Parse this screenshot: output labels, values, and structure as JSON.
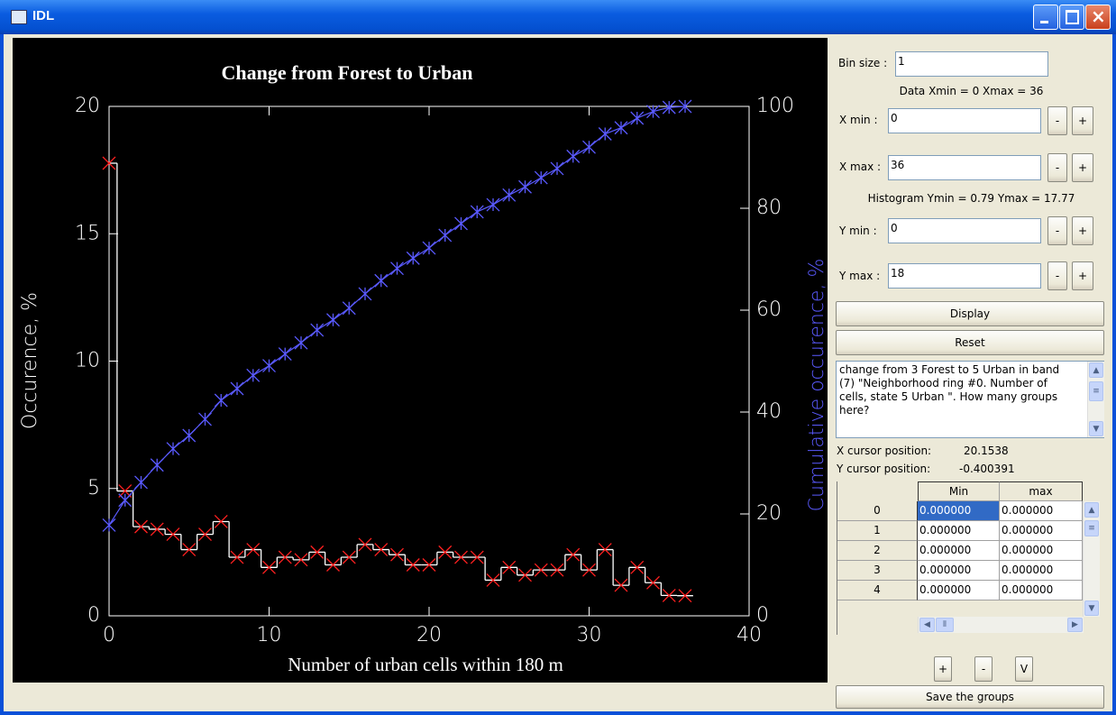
{
  "window": {
    "title": "IDL"
  },
  "chart_data": {
    "type": "line",
    "title": "Change from Forest to Urban",
    "x_label": "Number of urban cells within 180 m",
    "y_label": "Occurence, %",
    "y2_label": "Cumulative occurence, %",
    "x": [
      0,
      1,
      2,
      3,
      4,
      5,
      6,
      7,
      8,
      9,
      10,
      11,
      12,
      13,
      14,
      15,
      16,
      17,
      18,
      19,
      20,
      21,
      22,
      23,
      24,
      25,
      26,
      27,
      28,
      29,
      30,
      31,
      32,
      33,
      34,
      35,
      36
    ],
    "series": [
      {
        "color": "#ffffff",
        "marker": "x",
        "marker_color": "#ff2020",
        "step": true,
        "values": [
          17.77,
          4.9,
          3.5,
          3.4,
          3.2,
          2.6,
          3.2,
          3.7,
          2.3,
          2.6,
          1.9,
          2.3,
          2.2,
          2.5,
          2.0,
          2.3,
          2.8,
          2.6,
          2.4,
          2.0,
          2.0,
          2.5,
          2.3,
          2.3,
          1.4,
          1.9,
          1.6,
          1.8,
          1.8,
          2.4,
          1.8,
          2.6,
          1.2,
          1.9,
          1.3,
          0.8,
          0.79
        ]
      },
      {
        "color": "#5a5aff",
        "marker": "asterisk",
        "marker_color": "#5a5aff",
        "step": false,
        "axis": "y2",
        "values": [
          17.8,
          22.7,
          26.2,
          29.6,
          32.8,
          35.4,
          38.6,
          42.3,
          44.6,
          47.2,
          49.1,
          51.4,
          53.6,
          56.1,
          58.1,
          60.4,
          63.2,
          65.8,
          68.2,
          70.2,
          72.2,
          74.7,
          77.0,
          79.3,
          80.7,
          82.6,
          84.2,
          86.0,
          87.8,
          90.2,
          92.0,
          94.6,
          95.8,
          97.7,
          99.0,
          99.8,
          100
        ]
      }
    ],
    "xlim": [
      0,
      40
    ],
    "xticks": [
      0,
      10,
      20,
      30,
      40
    ],
    "ylim": [
      0,
      20
    ],
    "yticks": [
      0,
      5,
      10,
      15,
      20
    ],
    "y2lim": [
      0,
      100
    ],
    "y2ticks": [
      0,
      20,
      40,
      60,
      80,
      100
    ],
    "y2_label_color": "#5a5aff"
  },
  "panel": {
    "bin_size": {
      "label": "Bin size :",
      "value": "1"
    },
    "data_range": "Data Xmin = 0 Xmax = 36",
    "xmin": {
      "label": "X min :",
      "value": "0"
    },
    "xmax": {
      "label": "X max :",
      "value": "36"
    },
    "hist_range": "Histogram Ymin = 0.79 Ymax = 17.77",
    "ymin": {
      "label": "Y min :",
      "value": "0"
    },
    "ymax": {
      "label": "Y max :",
      "value": "18"
    },
    "step_buttons": [
      "-",
      "+"
    ],
    "display": "Display",
    "reset": "Reset",
    "message": "change from 3 Forest to 5 Urban  in band (7) \"Neighborhood ring #0. Number of cells, state 5 Urban \". How many groups here?",
    "cursor": [
      {
        "label": "X cursor position:",
        "value": "20.1538"
      },
      {
        "label": "Y cursor position:",
        "value": "-0.400391"
      }
    ],
    "table": {
      "columns": [
        "Min",
        "max"
      ],
      "rows": [
        [
          "0",
          "0.000000",
          "0.000000"
        ],
        [
          "1",
          "0.000000",
          "0.000000"
        ],
        [
          "2",
          "0.000000",
          "0.000000"
        ],
        [
          "3",
          "0.000000",
          "0.000000"
        ],
        [
          "4",
          "0.000000",
          "0.000000"
        ]
      ]
    },
    "group_buttons": [
      "+",
      "-",
      "V"
    ],
    "save": "Save the groups"
  }
}
